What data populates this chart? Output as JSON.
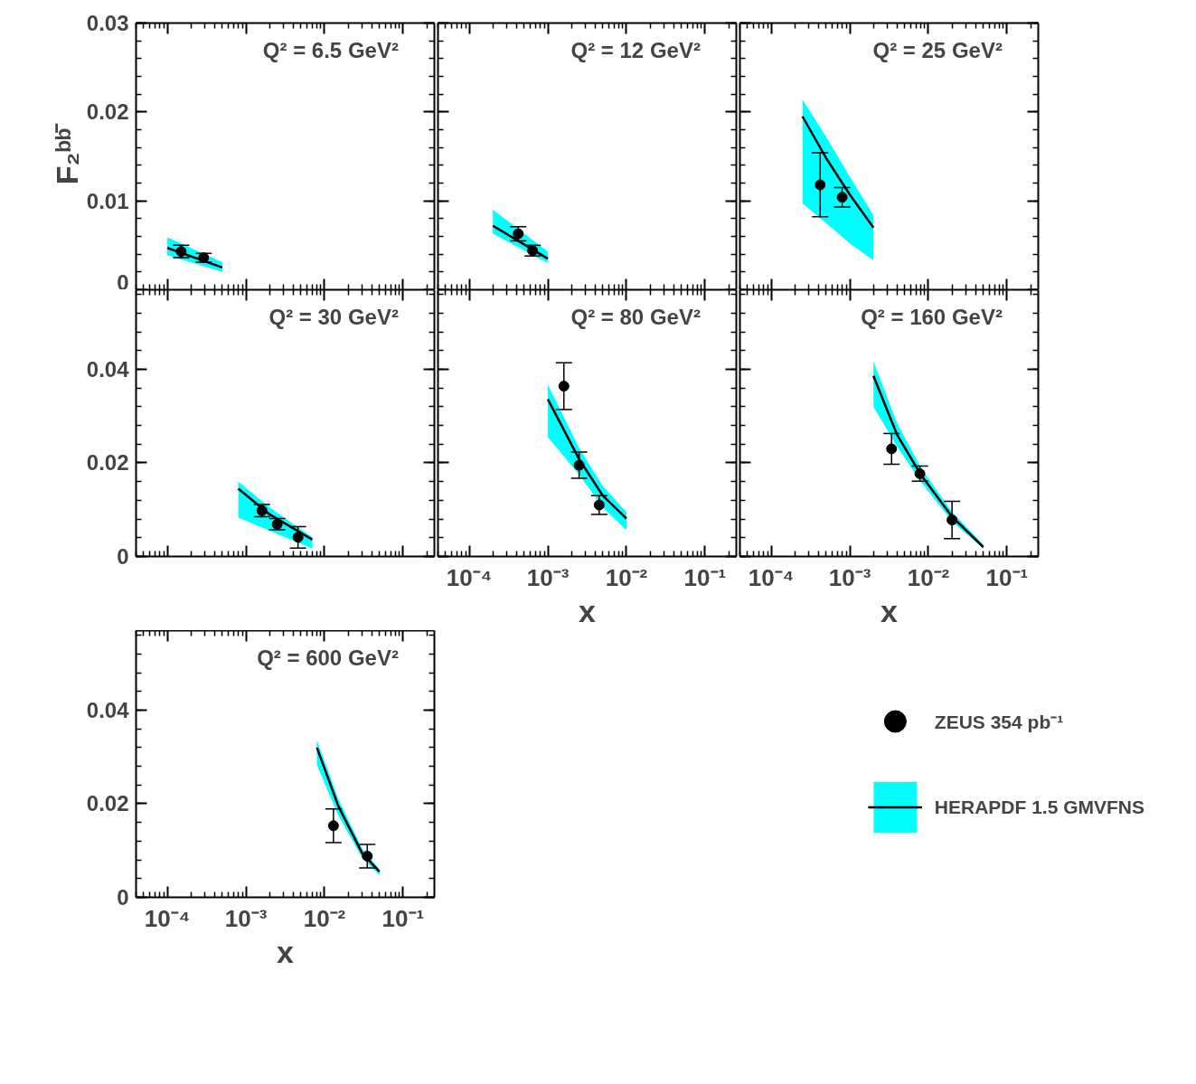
{
  "chart_data": [
    {
      "type": "line",
      "title": "Q² = 6.5 GeV²",
      "ylabel": "F₂ᵇᵇ̄",
      "log": "x",
      "tick_labels": "y",
      "xlim": [
        4e-05,
        0.25
      ],
      "ylim": [
        0,
        0.03
      ],
      "xticks": [
        {
          "value": 0.0001,
          "label": null
        },
        {
          "value": 0.001,
          "label": null
        },
        {
          "value": 0.01,
          "label": null
        },
        {
          "value": 0.1,
          "label": null
        }
      ],
      "yticks": [
        0,
        0.01,
        0.02,
        0.03
      ],
      "series": [
        {
          "type": "scatter",
          "marker": "circle",
          "color": "#000000",
          "x": [
            0.00015,
            0.00029
          ],
          "values": [
            0.0043,
            0.0036
          ],
          "errors": [
            0.0007,
            0.0005
          ]
        },
        {
          "color": "#000000",
          "x": [
            0.0001,
            0.0005
          ],
          "values": [
            0.0047,
            0.0025
          ],
          "lower": [
            0.0039,
            0.002
          ],
          "upper": [
            0.0059,
            0.0031
          ]
        }
      ]
    },
    {
      "type": "line",
      "title": "Q² = 12 GeV²",
      "log": "x",
      "tick_labels": false,
      "xlim": [
        4e-05,
        0.25
      ],
      "ylim": [
        0,
        0.03
      ],
      "xticks": [
        {
          "value": 0.0001,
          "label": null
        },
        {
          "value": 0.001,
          "label": null
        },
        {
          "value": 0.01,
          "label": null
        },
        {
          "value": 0.1,
          "label": null
        }
      ],
      "yticks": [
        {
          "value": 0,
          "label": null
        },
        {
          "value": 0.01,
          "label": null
        },
        {
          "value": 0.02,
          "label": null
        },
        {
          "value": 0.03,
          "label": null
        }
      ],
      "series": [
        {
          "type": "scatter",
          "marker": "circle",
          "color": "#000000",
          "x": [
            0.00042,
            0.00064
          ],
          "values": [
            0.0063,
            0.0044
          ],
          "errors": [
            0.0008,
            0.0006
          ]
        },
        {
          "color": "#000000",
          "x": [
            0.0002,
            0.001
          ],
          "values": [
            0.0072,
            0.0035
          ],
          "lower": [
            0.0063,
            0.003
          ],
          "upper": [
            0.009,
            0.0043
          ]
        }
      ]
    },
    {
      "type": "line",
      "title": "Q² = 25 GeV²",
      "log": "x",
      "tick_labels": false,
      "xlim": [
        4e-05,
        0.25
      ],
      "ylim": [
        0,
        0.03
      ],
      "xticks": [
        {
          "value": 0.0001,
          "label": null
        },
        {
          "value": 0.001,
          "label": null
        },
        {
          "value": 0.01,
          "label": null
        },
        {
          "value": 0.1,
          "label": null
        }
      ],
      "yticks": [
        {
          "value": 0,
          "label": null
        },
        {
          "value": 0.01,
          "label": null
        },
        {
          "value": 0.02,
          "label": null
        },
        {
          "value": 0.03,
          "label": null
        }
      ],
      "series": [
        {
          "type": "scatter",
          "marker": "circle",
          "color": "#000000",
          "x": [
            0.00042,
            0.0008
          ],
          "values": [
            0.0118,
            0.0104
          ],
          "errors": [
            0.0036,
            0.0011
          ]
        },
        {
          "color": "#000000",
          "x": [
            0.00025,
            0.0005,
            0.001,
            0.002
          ],
          "values": [
            0.0195,
            0.0148,
            0.0107,
            0.007
          ],
          "lower": [
            0.0097,
            0.0075,
            0.0052,
            0.0033
          ],
          "upper": [
            0.0214,
            0.0172,
            0.0127,
            0.0084
          ]
        }
      ]
    },
    {
      "type": "line",
      "title": "Q² = 30 GeV²",
      "log": "x",
      "tick_labels": "y",
      "xlim": [
        4e-05,
        0.25
      ],
      "ylim": [
        0,
        0.057
      ],
      "xticks": [
        {
          "value": 0.0001,
          "label": null
        },
        {
          "value": 0.001,
          "label": null
        },
        {
          "value": 0.01,
          "label": null
        },
        {
          "value": 0.1,
          "label": null
        }
      ],
      "yticks": [
        0,
        0.02,
        0.04
      ],
      "series": [
        {
          "type": "scatter",
          "marker": "circle",
          "color": "#000000",
          "x": [
            0.0016,
            0.0025,
            0.0046
          ],
          "values": [
            0.0098,
            0.0069,
            0.0041
          ],
          "errors": [
            0.0013,
            0.0012,
            0.0023
          ]
        },
        {
          "color": "#000000",
          "x": [
            0.0008,
            0.002,
            0.007
          ],
          "values": [
            0.0145,
            0.009,
            0.0036
          ],
          "lower": [
            0.0083,
            0.0055,
            0.0017
          ],
          "upper": [
            0.016,
            0.0105,
            0.0041
          ]
        }
      ]
    },
    {
      "type": "line",
      "title": "Q² = 80 GeV²",
      "xlabel": "x",
      "log": "x",
      "tick_labels": "x",
      "xlim": [
        4e-05,
        0.25
      ],
      "ylim": [
        0,
        0.057
      ],
      "xticks": [
        {
          "value": 0.0001,
          "label": "10⁻⁴"
        },
        {
          "value": 0.001,
          "label": "10⁻³"
        },
        {
          "value": 0.01,
          "label": "10⁻²"
        },
        {
          "value": 0.1,
          "label": "10⁻¹"
        }
      ],
      "yticks": [
        {
          "value": 0,
          "label": null
        },
        {
          "value": 0.02,
          "label": null
        },
        {
          "value": 0.04,
          "label": null
        }
      ],
      "series": [
        {
          "type": "scatter",
          "marker": "circle",
          "color": "#000000",
          "x": [
            0.0016,
            0.0025,
            0.0045
          ],
          "values": [
            0.0364,
            0.0195,
            0.011
          ],
          "errors": [
            0.005,
            0.0028,
            0.002
          ]
        },
        {
          "color": "#000000",
          "x": [
            0.001,
            0.0025,
            0.005,
            0.01
          ],
          "values": [
            0.0336,
            0.0208,
            0.013,
            0.0081
          ],
          "lower": [
            0.0255,
            0.0175,
            0.0105,
            0.0056
          ],
          "upper": [
            0.0367,
            0.0232,
            0.015,
            0.0095
          ]
        }
      ]
    },
    {
      "type": "line",
      "title": "Q² = 160 GeV²",
      "xlabel": "x",
      "log": "x",
      "tick_labels": "x",
      "xlim": [
        4e-05,
        0.25
      ],
      "ylim": [
        0,
        0.057
      ],
      "xticks": [
        {
          "value": 0.0001,
          "label": "10⁻⁴"
        },
        {
          "value": 0.001,
          "label": "10⁻³"
        },
        {
          "value": 0.01,
          "label": "10⁻²"
        },
        {
          "value": 0.1,
          "label": "10⁻¹"
        }
      ],
      "yticks": [
        {
          "value": 0,
          "label": null
        },
        {
          "value": 0.02,
          "label": null
        },
        {
          "value": 0.04,
          "label": null
        }
      ],
      "series": [
        {
          "type": "scatter",
          "marker": "circle",
          "color": "#000000",
          "x": [
            0.0034,
            0.0078,
            0.02
          ],
          "values": [
            0.023,
            0.0177,
            0.0078
          ],
          "errors": [
            0.0033,
            0.0016,
            0.004
          ]
        },
        {
          "color": "#000000",
          "x": [
            0.002,
            0.004,
            0.008,
            0.02,
            0.05
          ],
          "values": [
            0.0386,
            0.026,
            0.0175,
            0.0085,
            0.002
          ],
          "lower": [
            0.032,
            0.0235,
            0.016,
            0.0075,
            0.0017
          ],
          "upper": [
            0.0417,
            0.0285,
            0.019,
            0.0095,
            0.0025
          ]
        }
      ]
    },
    {
      "type": "line",
      "title": "Q² = 600 GeV²",
      "xlabel": "x",
      "log": "x",
      "legend": "right",
      "xlim": [
        4e-05,
        0.25
      ],
      "ylim": [
        0,
        0.057
      ],
      "xticks": [
        {
          "value": 0.0001,
          "label": "10⁻⁴"
        },
        {
          "value": 0.001,
          "label": "10⁻³"
        },
        {
          "value": 0.01,
          "label": "10⁻²"
        },
        {
          "value": 0.1,
          "label": "10⁻¹"
        }
      ],
      "yticks": [
        0,
        0.02,
        0.04
      ],
      "series": [
        {
          "name": "ZEUS 354 pb⁻¹",
          "type": "scatter",
          "marker": "circle",
          "color": "#000000",
          "x": [
            0.013,
            0.035
          ],
          "values": [
            0.0153,
            0.0088
          ],
          "errors": [
            0.0036,
            0.0025
          ]
        },
        {
          "name": "HERAPDF 1.5 GMVFNS",
          "color": "#000000",
          "x": [
            0.008,
            0.015,
            0.03,
            0.05
          ],
          "values": [
            0.032,
            0.0195,
            0.0095,
            0.0055
          ],
          "lower": [
            0.0283,
            0.0175,
            0.0085,
            0.0047
          ],
          "upper": [
            0.0336,
            0.021,
            0.0105,
            0.006
          ]
        }
      ]
    }
  ]
}
